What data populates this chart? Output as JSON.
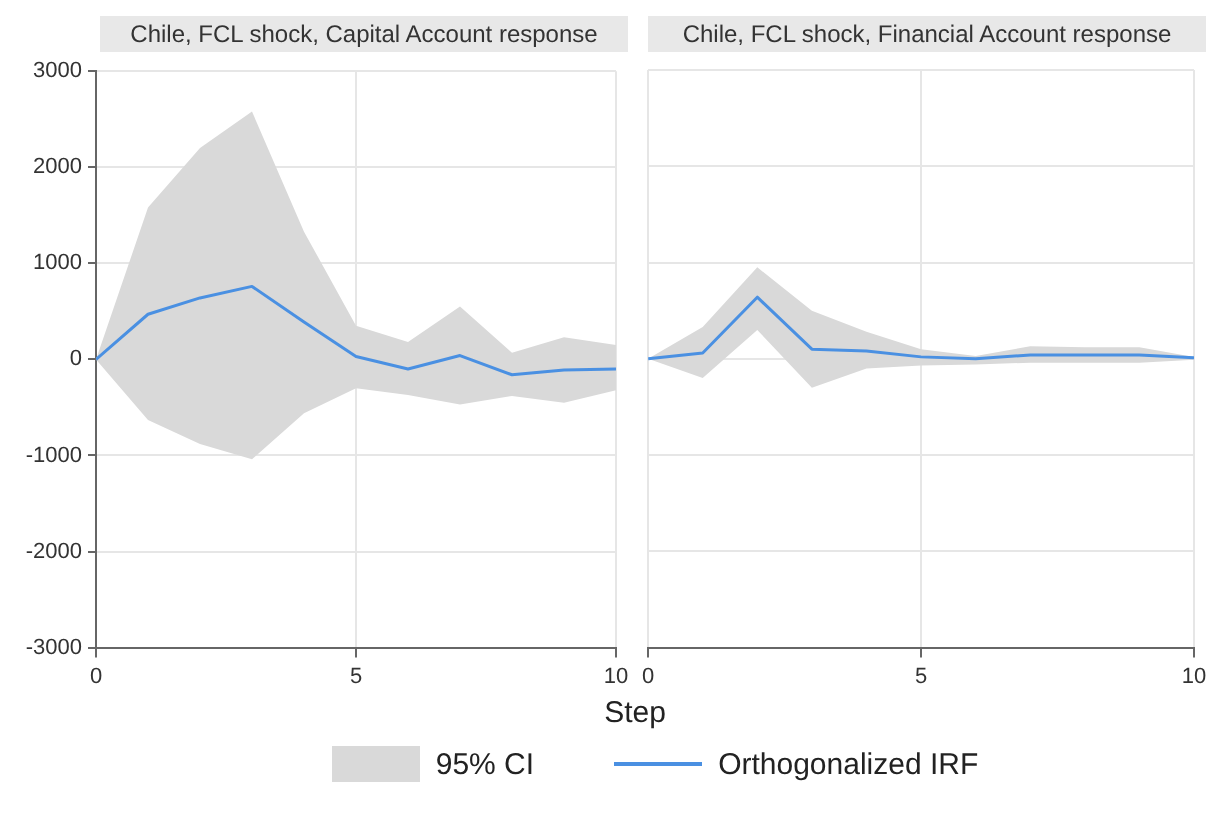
{
  "chart_data": [
    {
      "type": "line",
      "title": "Chile, FCL shock, Capital Account response",
      "xlabel": "Step",
      "x": [
        0,
        1,
        2,
        3,
        4,
        5,
        6,
        7,
        8,
        9,
        10
      ],
      "xlim": [
        0,
        10
      ],
      "xticks": [
        0,
        5,
        10
      ],
      "ylim": [
        -3000,
        3000
      ],
      "yticks": [
        -3000,
        -2000,
        -1000,
        0,
        1000,
        2000,
        3000
      ],
      "grid": true,
      "legend": "bottom",
      "annotations": [
        "95% CI"
      ],
      "series": [
        {
          "name": "Orthogonalized IRF",
          "color": "#4a90e2",
          "values": [
            0,
            470,
            640,
            760,
            390,
            30,
            -100,
            40,
            -160,
            -110,
            -100
          ],
          "lower": [
            0,
            -630,
            -880,
            -1040,
            -560,
            -300,
            -370,
            -470,
            -380,
            -450,
            -320
          ],
          "upper": [
            0,
            1580,
            2200,
            2580,
            1330,
            350,
            180,
            550,
            70,
            230,
            150
          ]
        }
      ]
    },
    {
      "type": "line",
      "title": "Chile, FCL shock, Financial Account response",
      "x": [
        0,
        1,
        2,
        3,
        4,
        5,
        6,
        7,
        8,
        9,
        10
      ],
      "xlim": [
        0,
        10
      ],
      "xticks": [
        0,
        5,
        10
      ],
      "ylim": [
        -3000,
        3000
      ],
      "yticks": [
        -3000,
        -2000,
        -1000,
        0,
        1000,
        2000,
        3000
      ],
      "grid": true,
      "tick_labels": "x",
      "series": [
        {
          "color": "#4a90e2",
          "values": [
            0,
            60,
            640,
            100,
            80,
            20,
            0,
            40,
            40,
            40,
            10
          ],
          "lower": [
            0,
            -200,
            300,
            -300,
            -100,
            -70,
            -60,
            -40,
            -40,
            -40,
            -10
          ],
          "upper": [
            0,
            330,
            950,
            500,
            280,
            100,
            30,
            130,
            120,
            120,
            20
          ]
        }
      ]
    }
  ]
}
